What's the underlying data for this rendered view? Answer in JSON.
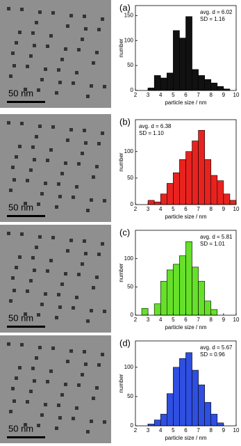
{
  "chart_data": [
    {
      "type": "histogram",
      "panel_label": "(a)",
      "annotation": [
        "avg. d = 6.02",
        "SD = 1.16"
      ],
      "scale_label": "50 nm",
      "xlabel": "particle size / nm",
      "ylabel": "number",
      "color": "#111111",
      "bins": [
        3.0,
        3.5,
        4.0,
        4.5,
        5.0,
        5.5,
        6.0,
        6.5,
        7.0,
        7.5,
        8.0,
        8.5,
        9.0,
        9.5
      ],
      "values": [
        5,
        30,
        25,
        35,
        120,
        105,
        148,
        42,
        30,
        22,
        15,
        8,
        3
      ],
      "xlim": [
        2,
        10
      ],
      "xticks": [
        2,
        3,
        4,
        5,
        6,
        7,
        8,
        9,
        10
      ],
      "ylim": [
        0,
        170
      ],
      "yticks": [
        0,
        50,
        100,
        150
      ]
    },
    {
      "type": "histogram",
      "panel_label": "(b)",
      "annotation": [
        "avg. d = 6.38",
        "SD = 1.10"
      ],
      "scale_label": "50 nm",
      "xlabel": "particle size / nm",
      "ylabel": "number",
      "color": "#e8231f",
      "bins": [
        3.0,
        3.5,
        4.0,
        4.5,
        5.0,
        5.5,
        6.0,
        6.5,
        7.0,
        7.5,
        8.0,
        8.5,
        9.0,
        9.5,
        10.0
      ],
      "values": [
        8,
        5,
        20,
        40,
        60,
        85,
        100,
        120,
        140,
        85,
        55,
        45,
        20,
        8
      ],
      "xlim": [
        2,
        10
      ],
      "xticks": [
        2,
        3,
        4,
        5,
        6,
        7,
        8,
        9,
        10
      ],
      "ylim": [
        0,
        160
      ],
      "yticks": [
        0,
        50,
        100
      ]
    },
    {
      "type": "histogram",
      "panel_label": "(c)",
      "annotation": [
        "avg. d = 5.81",
        "SD = 1.01"
      ],
      "scale_label": "50 nm",
      "xlabel": "particle size / nm",
      "ylabel": "number",
      "color": "#66e02a",
      "bins": [
        2.5,
        3.0,
        3.5,
        4.0,
        4.5,
        5.0,
        5.5,
        6.0,
        6.5,
        7.0,
        7.5,
        8.0,
        8.5
      ],
      "values": [
        12,
        0,
        20,
        60,
        80,
        90,
        105,
        130,
        85,
        60,
        25,
        10
      ],
      "xlim": [
        2,
        10
      ],
      "xticks": [
        2,
        3,
        4,
        5,
        6,
        7,
        8,
        9,
        10
      ],
      "ylim": [
        0,
        150
      ],
      "yticks": [
        0,
        50,
        100
      ]
    },
    {
      "type": "histogram",
      "panel_label": "(d)",
      "annotation": [
        "avg. d = 5.67",
        "SD = 0.96"
      ],
      "scale_label": "50 nm",
      "xlabel": "particle size / nm",
      "ylabel": "number",
      "color": "#2f4fe0",
      "bins": [
        3.0,
        3.5,
        4.0,
        4.5,
        5.0,
        5.5,
        6.0,
        6.5,
        7.0,
        7.5,
        8.0,
        8.5,
        9.0
      ],
      "values": [
        3,
        10,
        20,
        55,
        100,
        115,
        125,
        95,
        70,
        40,
        20,
        5
      ],
      "xlim": [
        2,
        10
      ],
      "xticks": [
        2,
        3,
        4,
        5,
        6,
        7,
        8,
        9,
        10
      ],
      "ylim": [
        0,
        145
      ],
      "yticks": [
        0,
        50,
        100
      ]
    }
  ]
}
